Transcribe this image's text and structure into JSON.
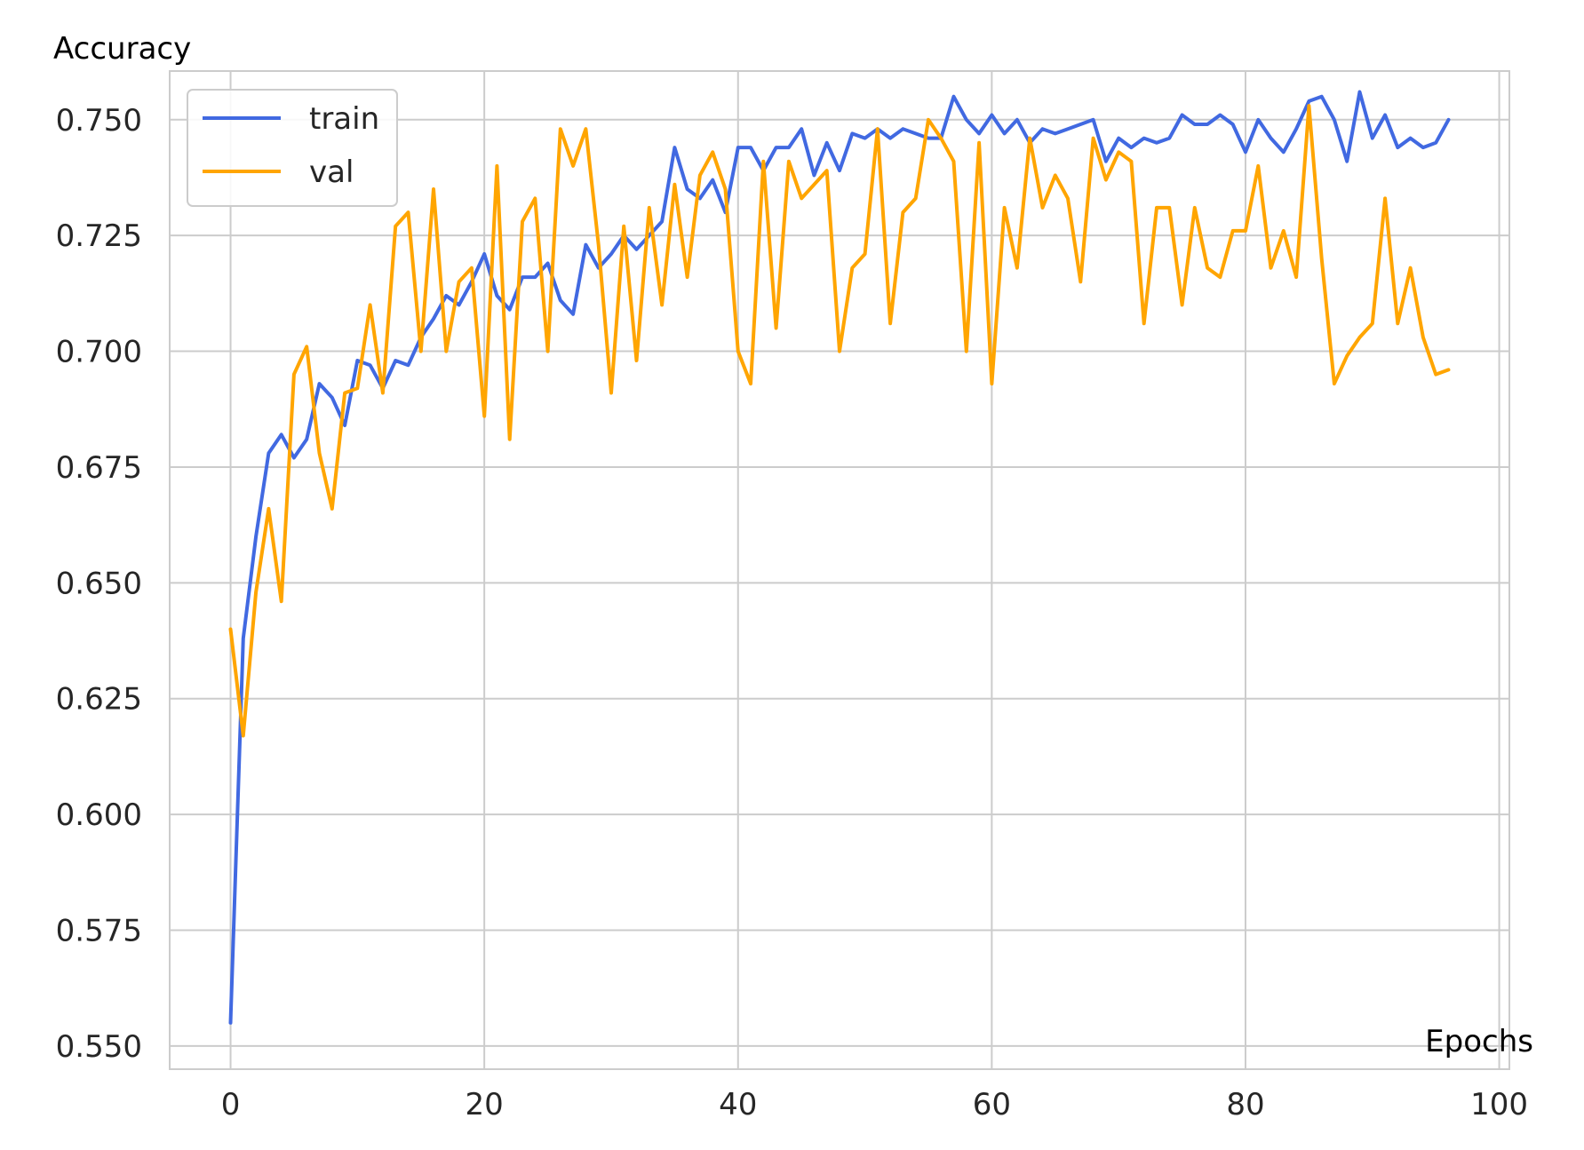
{
  "chart_data": {
    "type": "line",
    "title": "",
    "xlabel": "Epochs",
    "ylabel": "Accuracy",
    "xlim": [
      -4.8,
      100.8
    ],
    "ylim": [
      0.545,
      0.7605
    ],
    "xticks": [
      0,
      20,
      40,
      60,
      80,
      100
    ],
    "yticks": [
      0.55,
      0.575,
      0.6,
      0.625,
      0.65,
      0.675,
      0.7,
      0.725,
      0.75
    ],
    "xtick_labels": [
      "0",
      "20",
      "40",
      "60",
      "80",
      "100"
    ],
    "ytick_labels": [
      "0.550",
      "0.575",
      "0.600",
      "0.625",
      "0.650",
      "0.675",
      "0.700",
      "0.725",
      "0.750"
    ],
    "grid": true,
    "legend_position": "top-left",
    "series": [
      {
        "name": "train",
        "color": "#4169E1",
        "values": [
          0.555,
          0.638,
          0.66,
          0.678,
          0.682,
          0.677,
          0.681,
          0.693,
          0.69,
          0.684,
          0.698,
          0.697,
          0.692,
          0.698,
          0.697,
          0.703,
          0.707,
          0.712,
          0.71,
          0.715,
          0.721,
          0.712,
          0.709,
          0.716,
          0.716,
          0.719,
          0.711,
          0.708,
          0.723,
          0.718,
          0.721,
          0.725,
          0.722,
          0.725,
          0.728,
          0.744,
          0.735,
          0.733,
          0.737,
          0.73,
          0.744,
          0.744,
          0.739,
          0.744,
          0.744,
          0.748,
          0.738,
          0.745,
          0.739,
          0.747,
          0.746,
          0.748,
          0.746,
          0.748,
          0.747,
          0.746,
          0.746,
          0.755,
          0.75,
          0.747,
          0.751,
          0.747,
          0.75,
          0.745,
          0.748,
          0.747,
          0.748,
          0.749,
          0.75,
          0.741,
          0.746,
          0.744,
          0.746,
          0.745,
          0.746,
          0.751,
          0.749,
          0.749,
          0.751,
          0.749,
          0.743,
          0.75,
          0.746,
          0.743,
          0.748,
          0.754,
          0.755,
          0.75,
          0.741,
          0.756,
          0.746,
          0.751,
          0.744,
          0.746,
          0.744,
          0.745,
          0.75
        ]
      },
      {
        "name": "val",
        "color": "#FFA500",
        "values": [
          0.64,
          0.617,
          0.648,
          0.666,
          0.646,
          0.695,
          0.701,
          0.678,
          0.666,
          0.691,
          0.692,
          0.71,
          0.691,
          0.727,
          0.73,
          0.7,
          0.735,
          0.7,
          0.715,
          0.718,
          0.686,
          0.74,
          0.681,
          0.728,
          0.733,
          0.7,
          0.748,
          0.74,
          0.748,
          0.723,
          0.691,
          0.727,
          0.698,
          0.731,
          0.71,
          0.736,
          0.716,
          0.738,
          0.743,
          0.735,
          0.7,
          0.693,
          0.741,
          0.705,
          0.741,
          0.733,
          0.736,
          0.739,
          0.7,
          0.718,
          0.721,
          0.748,
          0.706,
          0.73,
          0.733,
          0.75,
          0.746,
          0.741,
          0.7,
          0.745,
          0.693,
          0.731,
          0.718,
          0.746,
          0.731,
          0.738,
          0.733,
          0.715,
          0.746,
          0.737,
          0.743,
          0.741,
          0.706,
          0.731,
          0.731,
          0.71,
          0.731,
          0.718,
          0.716,
          0.726,
          0.726,
          0.74,
          0.718,
          0.726,
          0.716,
          0.753,
          0.72,
          0.693,
          0.699,
          0.703,
          0.706,
          0.733,
          0.706,
          0.718,
          0.703,
          0.695,
          0.696
        ]
      }
    ]
  }
}
